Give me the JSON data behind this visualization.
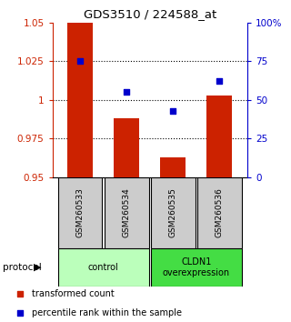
{
  "title": "GDS3510 / 224588_at",
  "samples": [
    "GSM260533",
    "GSM260534",
    "GSM260535",
    "GSM260536"
  ],
  "bar_values": [
    1.05,
    0.988,
    0.963,
    1.003
  ],
  "percentile_values": [
    75,
    55,
    43,
    62
  ],
  "ylim_left": [
    0.95,
    1.05
  ],
  "ylim_right": [
    0,
    100
  ],
  "yticks_left": [
    0.95,
    0.975,
    1.0,
    1.025,
    1.05
  ],
  "ytick_labels_left": [
    "0.95",
    "0.975",
    "1",
    "1.025",
    "1.05"
  ],
  "yticks_right": [
    0,
    25,
    50,
    75,
    100
  ],
  "ytick_labels_right": [
    "0",
    "25",
    "50",
    "75",
    "100%"
  ],
  "bar_color": "#cc2200",
  "dot_color": "#0000cc",
  "bar_width": 0.55,
  "grid_lines": [
    0.975,
    1.0,
    1.025
  ],
  "protocol_groups": [
    {
      "label": "control",
      "samples": [
        0,
        1
      ],
      "color": "#bbffbb"
    },
    {
      "label": "CLDN1\noverexpression",
      "samples": [
        2,
        3
      ],
      "color": "#44dd44"
    }
  ],
  "protocol_label": "protocol",
  "legend_items": [
    {
      "color": "#cc2200",
      "label": "transformed count"
    },
    {
      "color": "#0000cc",
      "label": "percentile rank within the sample"
    }
  ],
  "sample_box_color": "#cccccc",
  "bg_color": "#ffffff",
  "figsize": [
    3.2,
    3.54
  ],
  "dpi": 100
}
